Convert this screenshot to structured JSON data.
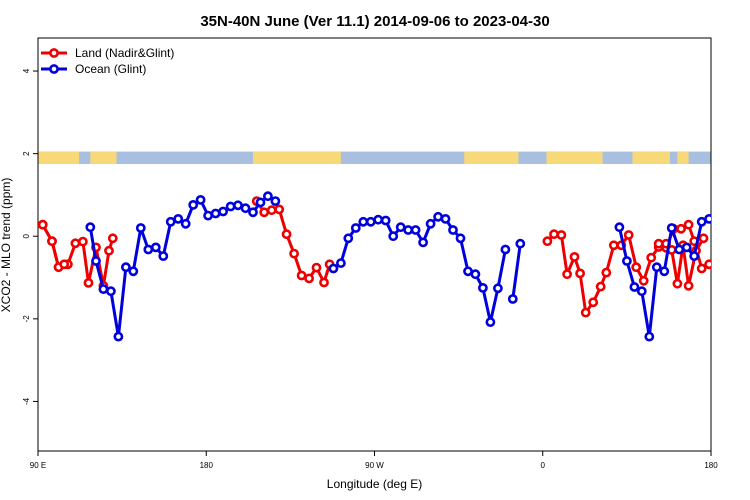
{
  "chart_data": {
    "type": "line",
    "title": "35N-40N June (Ver 11.1)   2014-09-06 to 2023-04-30",
    "xlabel": "Longitude (deg E)",
    "ylabel": "XCO2 - MLO trend (ppm)",
    "xlim": [
      90,
      450
    ],
    "ylim": [
      -5.2,
      4.8
    ],
    "xticks": [
      {
        "value": 90,
        "label": "90 E"
      },
      {
        "value": 180,
        "label": "180"
      },
      {
        "value": 270,
        "label": "90 W"
      },
      {
        "value": 360,
        "label": "0"
      },
      {
        "value": 450,
        "label": "180"
      }
    ],
    "yticks": [
      -4,
      -2,
      0,
      2,
      4
    ],
    "legend": {
      "position": "top-left",
      "entries": [
        {
          "label": "Land (Nadir&Glint)",
          "color": "#ee0000"
        },
        {
          "label": "Ocean (Glint)",
          "color": "#0000dd"
        }
      ]
    },
    "map_strip": {
      "y_range": [
        1.75,
        2.05
      ],
      "ocean_color": "#a8bfe0",
      "land_color": "#f7d97a",
      "land_spans": [
        [
          90,
          112
        ],
        [
          118,
          132
        ],
        [
          205,
          252
        ],
        [
          318,
          347
        ],
        [
          362,
          392
        ],
        [
          408,
          428
        ],
        [
          432,
          438
        ]
      ]
    },
    "series": [
      {
        "name": "Land (Nadir&Glint)",
        "color": "#ee0000",
        "segments": [
          [
            [
              92.5,
              0.28
            ],
            [
              97.5,
              -0.12
            ],
            [
              101,
              -0.75
            ],
            [
              106,
              -0.68
            ],
            [
              110,
              -0.17
            ],
            [
              114,
              -0.13
            ],
            [
              117,
              -1.13
            ],
            [
              121,
              -0.27
            ],
            [
              125,
              -1.2
            ],
            [
              128,
              -0.35
            ],
            [
              130,
              -0.05
            ]
          ],
          [
            [
              207,
              0.85
            ],
            [
              211,
              0.58
            ],
            [
              215,
              0.63
            ],
            [
              219,
              0.65
            ],
            [
              223,
              0.05
            ],
            [
              227,
              -0.42
            ],
            [
              231,
              -0.95
            ],
            [
              235,
              -1.02
            ],
            [
              239,
              -0.76
            ],
            [
              243,
              -1.12
            ],
            [
              246,
              -0.68
            ]
          ],
          [
            [
              362.5,
              -0.12
            ],
            [
              366,
              0.05
            ],
            [
              370,
              0.03
            ],
            [
              373,
              -0.92
            ],
            [
              377,
              -0.5
            ],
            [
              380,
              -0.9
            ],
            [
              383,
              -1.85
            ],
            [
              387,
              -1.6
            ],
            [
              391,
              -1.22
            ],
            [
              394,
              -0.88
            ],
            [
              398,
              -0.22
            ],
            [
              402,
              -0.22
            ],
            [
              406,
              0.03
            ],
            [
              410,
              -0.75
            ],
            [
              414,
              -1.08
            ],
            [
              418,
              -0.52
            ],
            [
              422,
              -0.26
            ],
            [
              426,
              -0.28
            ],
            [
              430,
              0.18
            ],
            [
              434,
              0.18
            ],
            [
              438,
              0.28
            ],
            [
              441,
              -0.12
            ],
            [
              445,
              -0.78
            ],
            [
              449,
              -0.68
            ]
          ],
          [
            [
              92.5,
              0.28
            ],
            [
              97.5,
              -0.12
            ],
            [
              101,
              -0.75
            ],
            [
              104,
              -0.68
            ]
          ],
          [
            [
              422,
              -0.18
            ],
            [
              426,
              -0.18
            ],
            [
              429,
              -0.33
            ],
            [
              432,
              -1.15
            ],
            [
              435,
              -0.22
            ],
            [
              438,
              -1.2
            ],
            [
              442,
              -0.35
            ],
            [
              446,
              -0.05
            ]
          ]
        ]
      },
      {
        "name": "Ocean (Glint)",
        "color": "#0000dd",
        "segments": [
          [
            [
              118,
              0.22
            ],
            [
              121,
              -0.6
            ],
            [
              125,
              -1.28
            ],
            [
              129,
              -1.33
            ],
            [
              133,
              -2.43
            ],
            [
              137,
              -0.75
            ],
            [
              141,
              -0.85
            ],
            [
              145,
              0.2
            ],
            [
              149,
              -0.32
            ],
            [
              153,
              -0.27
            ],
            [
              157,
              -0.48
            ],
            [
              161,
              0.35
            ],
            [
              165,
              0.42
            ],
            [
              169,
              0.3
            ],
            [
              173,
              0.76
            ],
            [
              177,
              0.88
            ],
            [
              181,
              0.5
            ],
            [
              185,
              0.55
            ],
            [
              189,
              0.6
            ],
            [
              193,
              0.72
            ],
            [
              197,
              0.75
            ],
            [
              201,
              0.68
            ],
            [
              205,
              0.58
            ],
            [
              209,
              0.82
            ],
            [
              213,
              0.97
            ],
            [
              217,
              0.85
            ]
          ],
          [
            [
              248,
              -0.78
            ],
            [
              252,
              -0.65
            ],
            [
              256,
              -0.05
            ],
            [
              260,
              0.2
            ],
            [
              264,
              0.35
            ],
            [
              268,
              0.35
            ],
            [
              272,
              0.4
            ],
            [
              276,
              0.38
            ],
            [
              280,
              0.0
            ],
            [
              284,
              0.22
            ],
            [
              288,
              0.15
            ],
            [
              292,
              0.15
            ],
            [
              296,
              -0.15
            ],
            [
              300,
              0.3
            ],
            [
              304,
              0.47
            ],
            [
              308,
              0.42
            ],
            [
              312,
              0.15
            ],
            [
              316,
              -0.05
            ],
            [
              320,
              -0.85
            ],
            [
              324,
              -0.92
            ],
            [
              328,
              -1.25
            ],
            [
              332,
              -2.08
            ],
            [
              336,
              -1.26
            ],
            [
              340,
              -0.32
            ]
          ],
          [
            [
              344,
              -1.52
            ],
            [
              348,
              -0.18
            ]
          ],
          [
            [
              401,
              0.22
            ],
            [
              405,
              -0.6
            ],
            [
              409,
              -1.23
            ],
            [
              413,
              -1.33
            ],
            [
              417,
              -2.43
            ],
            [
              421,
              -0.75
            ],
            [
              425,
              -0.85
            ],
            [
              429,
              0.2
            ],
            [
              433,
              -0.32
            ],
            [
              437,
              -0.27
            ],
            [
              441,
              -0.48
            ],
            [
              445,
              0.35
            ],
            [
              449,
              0.42
            ]
          ]
        ]
      }
    ]
  }
}
